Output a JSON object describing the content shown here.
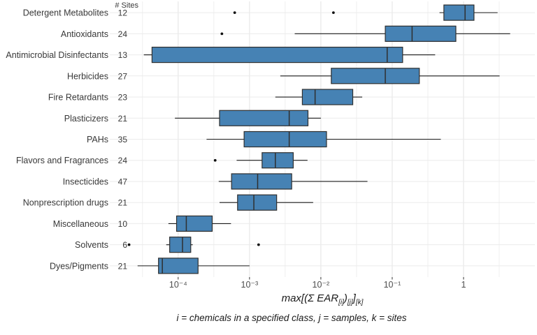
{
  "caption": "i = chemicals in a specified class, j = samples, k = sites",
  "chart_data": {
    "type": "boxplot",
    "orientation": "horizontal",
    "x_scale": "log10",
    "xlim": [
      1.1e-05,
      10
    ],
    "grid": "on",
    "sites_header": "# Sites",
    "xlabel_plain": "max[(Σ EAR[i])[j]][k]",
    "xlabel_parts": [
      {
        "text": "max[(Σ EAR",
        "sub": false
      },
      {
        "text": "[i]",
        "sub": true
      },
      {
        "text": ")",
        "sub": false
      },
      {
        "text": "[j]",
        "sub": true
      },
      {
        "text": "]",
        "sub": false
      },
      {
        "text": "[k]",
        "sub": true
      }
    ],
    "caption": "i = chemicals in a specified class, j = samples, k = sites",
    "x_ticks": [
      {
        "value": 0.0001,
        "label": "10⁻⁴"
      },
      {
        "value": 0.001,
        "label": "10⁻³"
      },
      {
        "value": 0.01,
        "label": "10⁻²"
      },
      {
        "value": 0.1,
        "label": "10⁻¹"
      },
      {
        "value": 1,
        "label": "1"
      }
    ],
    "x_minor_gridlines": [
      3.16e-05,
      0.000316,
      0.00316,
      0.0316,
      0.316,
      3.16
    ],
    "colors": {
      "box_fill": "#4682B4",
      "box_stroke": "#2f2f2f",
      "whisker": "#1a1a1a",
      "outlier": "#111111",
      "grid_major": "#e3e3e3",
      "grid_minor": "#efefef",
      "grid_row": "#ebebeb",
      "tick_mark": "#333333",
      "tick_text": "#4d4d4d",
      "label_text": "#383838"
    },
    "rows": [
      {
        "category": "Detergent Metabolites",
        "n_sites": 12,
        "whisker_low": 0.46,
        "q1": 0.53,
        "median": 1.05,
        "q3": 1.4,
        "whisker_high": 3.0,
        "outliers": [
          0.00062,
          0.015
        ]
      },
      {
        "category": "Antioxidants",
        "n_sites": 24,
        "whisker_low": 0.0043,
        "q1": 0.08,
        "median": 0.19,
        "q3": 0.78,
        "whisker_high": 4.5,
        "outliers": [
          0.00041
        ]
      },
      {
        "category": "Antimicrobial Disinfectants",
        "n_sites": 13,
        "whisker_low": 3.3e-05,
        "q1": 4.3e-05,
        "median": 0.085,
        "q3": 0.14,
        "whisker_high": 0.4,
        "outliers": []
      },
      {
        "category": "Herbicides",
        "n_sites": 27,
        "whisker_low": 0.0027,
        "q1": 0.014,
        "median": 0.08,
        "q3": 0.24,
        "whisker_high": 3.2,
        "outliers": []
      },
      {
        "category": "Fire Retardants",
        "n_sites": 23,
        "whisker_low": 0.0023,
        "q1": 0.0055,
        "median": 0.0083,
        "q3": 0.028,
        "whisker_high": 0.038,
        "outliers": []
      },
      {
        "category": "Plasticizers",
        "n_sites": 21,
        "whisker_low": 9e-05,
        "q1": 0.00038,
        "median": 0.0036,
        "q3": 0.0066,
        "whisker_high": 0.01,
        "outliers": []
      },
      {
        "category": "PAHs",
        "n_sites": 35,
        "whisker_low": 0.00025,
        "q1": 0.00084,
        "median": 0.0036,
        "q3": 0.012,
        "whisker_high": 0.48,
        "outliers": []
      },
      {
        "category": "Flavors and Fragrances",
        "n_sites": 24,
        "whisker_low": 0.00066,
        "q1": 0.0015,
        "median": 0.0023,
        "q3": 0.0041,
        "whisker_high": 0.0065,
        "outliers": [
          0.00033
        ]
      },
      {
        "category": "Insecticides",
        "n_sites": 47,
        "whisker_low": 0.00037,
        "q1": 0.00056,
        "median": 0.0013,
        "q3": 0.0039,
        "whisker_high": 0.045,
        "outliers": []
      },
      {
        "category": "Nonprescription drugs",
        "n_sites": 21,
        "whisker_low": 0.00038,
        "q1": 0.00068,
        "median": 0.00115,
        "q3": 0.0024,
        "whisker_high": 0.0078,
        "outliers": []
      },
      {
        "category": "Miscellaneous",
        "n_sites": 10,
        "whisker_low": 7.3e-05,
        "q1": 9.5e-05,
        "median": 0.00013,
        "q3": 0.0003,
        "whisker_high": 0.00055,
        "outliers": []
      },
      {
        "category": "Solvents",
        "n_sites": 6,
        "whisker_low": 6.8e-05,
        "q1": 7.6e-05,
        "median": 0.000115,
        "q3": 0.00015,
        "whisker_high": 0.00016,
        "outliers": [
          2.05e-05,
          0.00134
        ]
      },
      {
        "category": "Dyes/Pigments",
        "n_sites": 21,
        "whisker_low": 2.7e-05,
        "q1": 5.3e-05,
        "median": 6e-05,
        "q3": 0.00019,
        "whisker_high": 0.001,
        "outliers": []
      }
    ]
  }
}
